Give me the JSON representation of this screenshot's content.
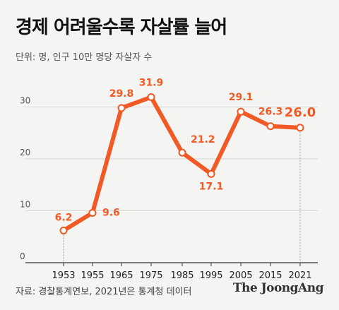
{
  "title": "경제 어려울수록 자살률 늘어",
  "subtitle": "단위: 명, 인구 10만 명당 자살자 수",
  "source": "자료: 경찰통계연보, 2021년은 통계청 데이터",
  "brand": "The JoongAng",
  "colors": {
    "line": "#f15a24",
    "grid": "#d6d6d6",
    "axis": "#333333",
    "background": "#f4f4f3"
  },
  "chart_data": {
    "type": "line",
    "categories": [
      "1953",
      "1955",
      "1965",
      "1975",
      "1985",
      "1995",
      "2005",
      "2015",
      "2021"
    ],
    "series": [
      {
        "values": [
          6.2,
          9.6,
          29.8,
          31.9,
          21.2,
          17.1,
          29.1,
          26.3,
          26.0
        ],
        "labels": [
          "6.2",
          "9.6",
          "29.8",
          "31.9",
          "21.2",
          "17.1",
          "29.1",
          "26.3",
          "26.0"
        ]
      }
    ],
    "y_ticks": [
      "0",
      "10",
      "20",
      "30"
    ],
    "ylim": [
      0,
      40
    ],
    "grid": true,
    "highlight_last": true
  }
}
